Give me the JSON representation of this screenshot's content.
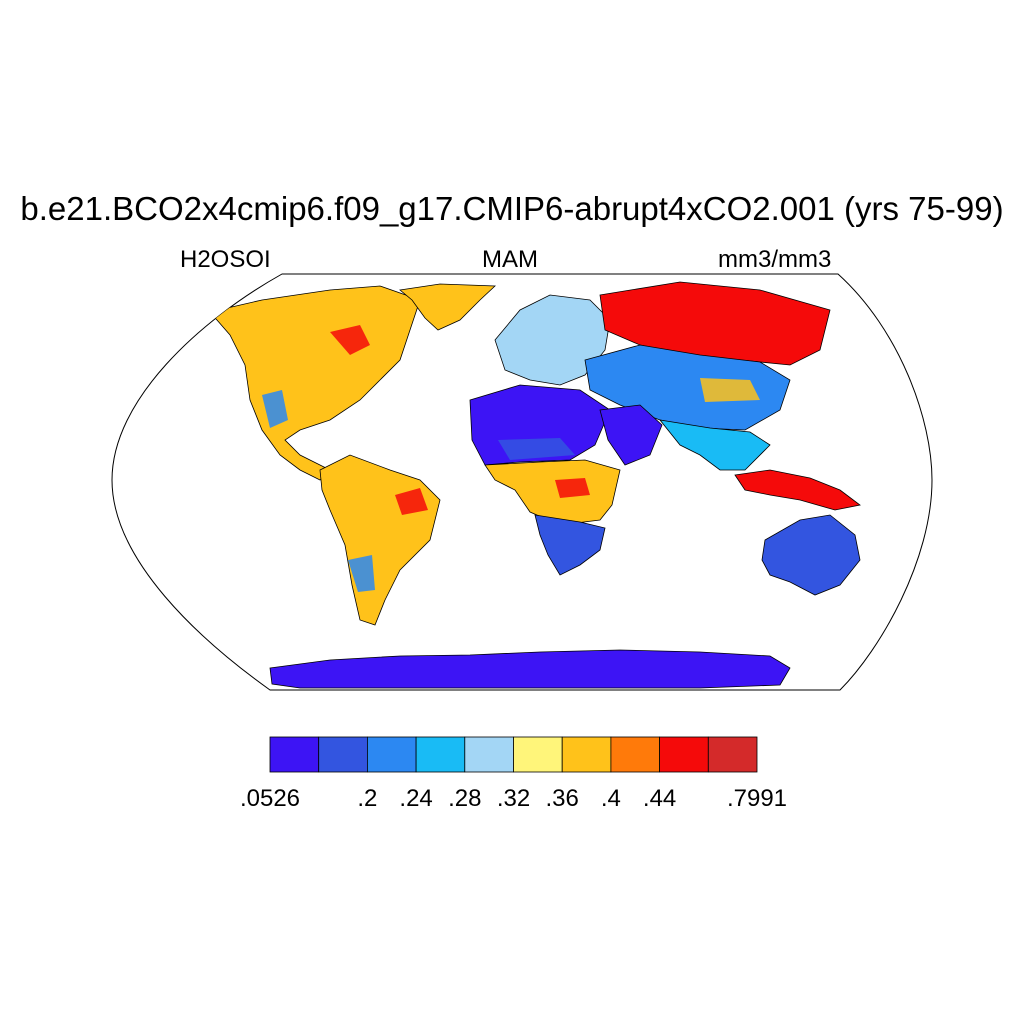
{
  "title": "b.e21.BCO2x4cmip6.f09_g17.CMIP6-abrupt4xCO2.001 (yrs 75-99)",
  "variable": "H2OSOI",
  "season": "MAM",
  "units": "mm3/mm3",
  "colorbar": {
    "colors": [
      "#3d14f5",
      "#3355e0",
      "#2c88f2",
      "#19bbf5",
      "#a3d6f5",
      "#fff57a",
      "#ffc21a",
      "#ff7a0a",
      "#f50a0a",
      "#d42a2a"
    ],
    "tick_labels": [
      ".0526",
      ".2",
      ".24",
      ".28",
      ".32",
      ".36",
      ".4",
      ".44",
      ".7991"
    ],
    "tick_boundaries": [
      0,
      2,
      3,
      4,
      5,
      6,
      7,
      8,
      10
    ]
  },
  "map": {
    "projection": "Robinson",
    "field": "soil moisture",
    "regions": [
      {
        "name": "north-america-region",
        "color": "#ffc21a"
      },
      {
        "name": "greenland-region",
        "color": "#ffc21a"
      },
      {
        "name": "south-america-region",
        "color": "#ffc21a"
      },
      {
        "name": "europe-region",
        "color": "#a3d6f5"
      },
      {
        "name": "north-asia-region",
        "color": "#f50a0a"
      },
      {
        "name": "central-asia-region",
        "color": "#2c88f2"
      },
      {
        "name": "sahara-region",
        "color": "#3d14f5"
      },
      {
        "name": "arabia-region",
        "color": "#3d14f5"
      },
      {
        "name": "central-africa-region",
        "color": "#ffc21a"
      },
      {
        "name": "southern-africa-region",
        "color": "#3355e0"
      },
      {
        "name": "south-asia-region",
        "color": "#19bbf5"
      },
      {
        "name": "indonesia-region",
        "color": "#f50a0a"
      },
      {
        "name": "australia-region",
        "color": "#3355e0"
      },
      {
        "name": "antarctica-region",
        "color": "#3d14f5"
      }
    ]
  }
}
